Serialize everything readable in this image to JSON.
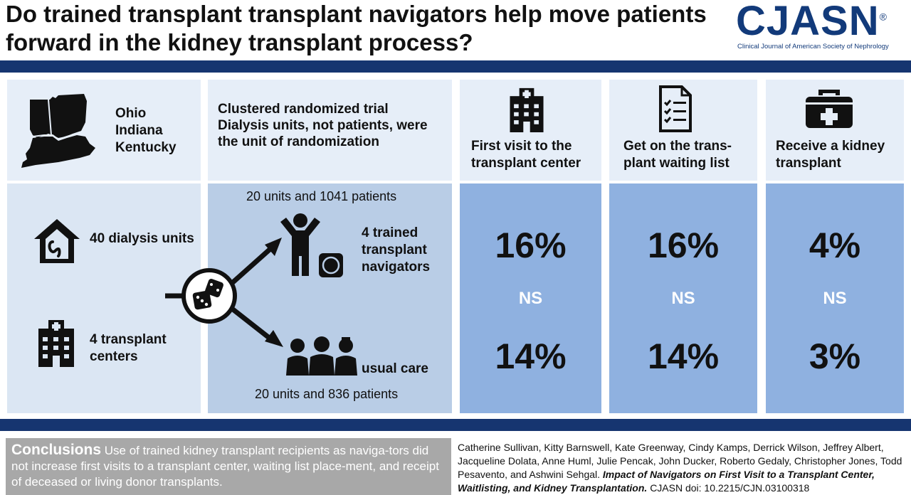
{
  "title": "Do trained transplant transplant navigators help move patients forward in the kidney transplant process?",
  "logo": {
    "word": "CJASN",
    "reg": "®",
    "subtitle": "Clinical Journal of American Society of Nephrology"
  },
  "states": [
    "Ohio",
    "Indiana",
    "Kentucky"
  ],
  "design": {
    "line1": "Clustered randomized trial",
    "line2": "Dialysis units, not patients, were",
    "line3": "the unit of randomization"
  },
  "left": {
    "dialysis": "40 dialysis units",
    "centers": "4 transplant centers"
  },
  "arms": {
    "navigator_n": "20 units and 1041 patients",
    "navigator_label": "4 trained transplant navigators",
    "usual_label": "usual care",
    "usual_n": "20 units and 836 patients"
  },
  "outcomes": [
    {
      "header": "First visit to the transplant center",
      "navigator": "16%",
      "ns": "NS",
      "usual": "14%"
    },
    {
      "header": "Get on the trans-plant waiting list",
      "navigator": "16%",
      "ns": "NS",
      "usual": "14%"
    },
    {
      "header": "Receive a kidney transplant",
      "navigator": "4%",
      "ns": "NS",
      "usual": "3%"
    }
  ],
  "conclusions": {
    "heading": "Conclusions",
    "body": "Use of trained kidney transplant recipients as naviga-tors did not increase first visits to a transplant center, waiting list place-ment, and receipt of deceased or living donor transplants."
  },
  "citation": {
    "authors": "Catherine Sullivan, Kitty Barnswell, Kate Greenway, Cindy Kamps, Derrick Wilson, Jeffrey Albert, Jacqueline Dolata, Anne Huml, Julie Pencak, John Ducker, Roberto Gedaly, Christopher Jones, Todd Pesavento, and Ashwini Sehgal.",
    "article": "Impact of Navigators on First Visit to a Transplant Center, Waitlisting, and Kidney Transplantation.",
    "doi": "CJASN doi: 10.2215/CJN.03100318"
  },
  "colors": {
    "navy": "#163570",
    "light": "#e6eef8",
    "mid": "#b9cde6",
    "blue": "#8fb1e0",
    "gray": "#a8a8a8"
  }
}
